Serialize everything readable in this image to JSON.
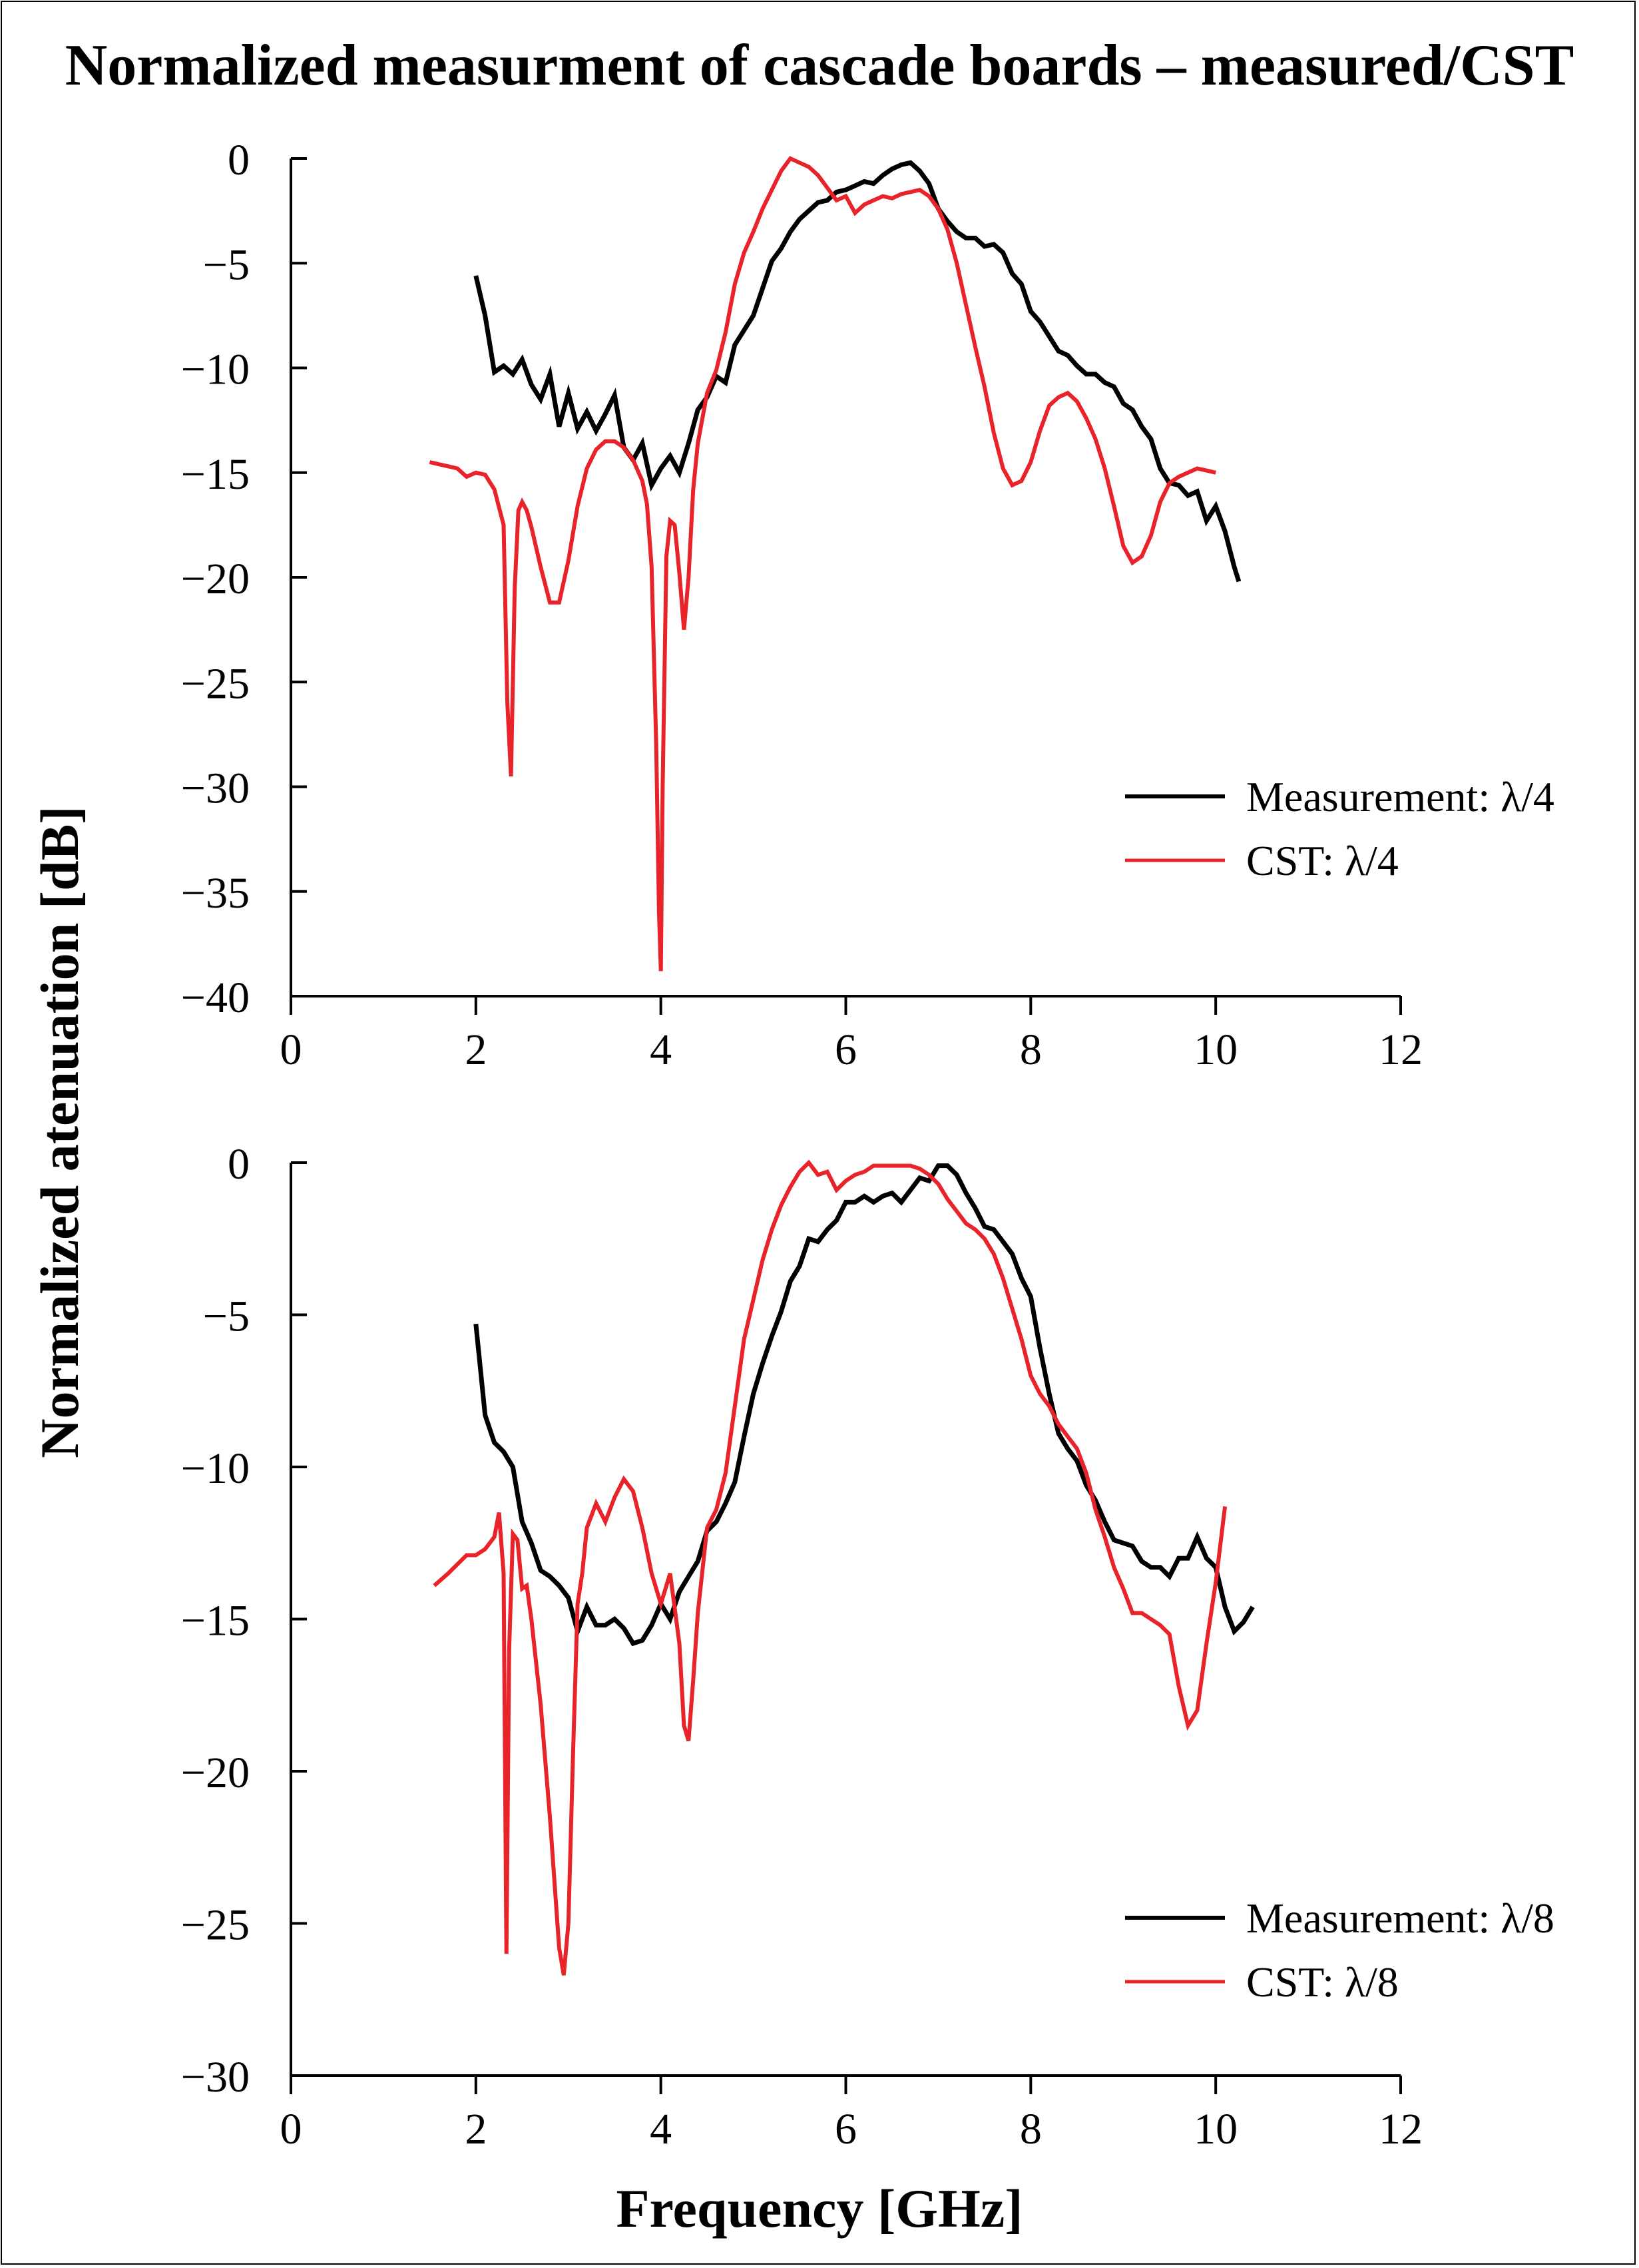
{
  "figure": {
    "title": "Normalized measurment of cascade boards – measured/CST",
    "ylabel": "Normalized atenuation [dB]",
    "xlabel": "Frequency [GHz]"
  },
  "colors": {
    "measurement": "#000000",
    "cst": "#e8232a"
  },
  "chart_data": [
    {
      "type": "line",
      "xlim": [
        0,
        12
      ],
      "ylim": [
        -40,
        0
      ],
      "xticks": [
        0,
        2,
        4,
        6,
        8,
        10,
        12
      ],
      "yticks": [
        0,
        -5,
        -10,
        -15,
        -20,
        -25,
        -30,
        -35,
        -40
      ],
      "xlabel": "Frequency [GHz]",
      "ylabel": "Normalized atenuation [dB]",
      "legend_position": "right",
      "series": [
        {
          "name": "Measurement: λ/4",
          "color": "#000000",
          "x": [
            2.0,
            2.1,
            2.2,
            2.3,
            2.4,
            2.5,
            2.6,
            2.7,
            2.8,
            2.9,
            3.0,
            3.1,
            3.2,
            3.3,
            3.4,
            3.5,
            3.6,
            3.7,
            3.8,
            3.9,
            4.0,
            4.1,
            4.2,
            4.3,
            4.4,
            4.5,
            4.6,
            4.7,
            4.8,
            4.9,
            5.0,
            5.1,
            5.2,
            5.3,
            5.4,
            5.5,
            5.6,
            5.7,
            5.8,
            5.9,
            6.0,
            6.1,
            6.2,
            6.3,
            6.4,
            6.5,
            6.6,
            6.7,
            6.8,
            6.9,
            7.0,
            7.1,
            7.2,
            7.3,
            7.4,
            7.5,
            7.6,
            7.7,
            7.8,
            7.9,
            8.0,
            8.1,
            8.2,
            8.3,
            8.4,
            8.5,
            8.6,
            8.7,
            8.8,
            8.9,
            9.0,
            9.1,
            9.2,
            9.3,
            9.4,
            9.5,
            9.6,
            9.7,
            9.8,
            9.9,
            10.0,
            10.1,
            10.2,
            10.25
          ],
          "y": [
            -5.6,
            -7.5,
            -10.2,
            -9.9,
            -10.3,
            -9.6,
            -10.8,
            -11.5,
            -10.3,
            -12.8,
            -11.2,
            -12.9,
            -12.1,
            -13.0,
            -12.2,
            -11.3,
            -13.8,
            -14.4,
            -13.6,
            -15.6,
            -14.8,
            -14.2,
            -15.0,
            -13.6,
            -12.0,
            -11.4,
            -10.4,
            -10.7,
            -8.9,
            -8.2,
            -7.5,
            -6.2,
            -4.9,
            -4.3,
            -3.5,
            -2.9,
            -2.5,
            -2.1,
            -2.0,
            -1.6,
            -1.5,
            -1.3,
            -1.1,
            -1.2,
            -0.8,
            -0.5,
            -0.3,
            -0.2,
            -0.6,
            -1.2,
            -2.4,
            -3.0,
            -3.5,
            -3.8,
            -3.8,
            -4.2,
            -4.1,
            -4.5,
            -5.5,
            -6.0,
            -7.3,
            -7.8,
            -8.5,
            -9.2,
            -9.4,
            -9.9,
            -10.3,
            -10.3,
            -10.7,
            -10.9,
            -11.7,
            -12.0,
            -12.8,
            -13.4,
            -14.8,
            -15.5,
            -15.6,
            -16.1,
            -15.9,
            -17.3,
            -16.6,
            -17.8,
            -19.5,
            -20.2
          ]
        },
        {
          "name": "CST: λ/4",
          "color": "#e8232a",
          "x": [
            1.5,
            1.6,
            1.7,
            1.8,
            1.9,
            2.0,
            2.1,
            2.2,
            2.3,
            2.34,
            2.38,
            2.42,
            2.46,
            2.5,
            2.55,
            2.6,
            2.7,
            2.8,
            2.9,
            3.0,
            3.1,
            3.2,
            3.3,
            3.4,
            3.5,
            3.6,
            3.7,
            3.8,
            3.85,
            3.9,
            3.95,
            3.98,
            4.0,
            4.02,
            4.06,
            4.1,
            4.15,
            4.2,
            4.25,
            4.3,
            4.35,
            4.4,
            4.5,
            4.6,
            4.7,
            4.8,
            4.9,
            5.0,
            5.1,
            5.2,
            5.3,
            5.4,
            5.5,
            5.6,
            5.7,
            5.8,
            5.9,
            6.0,
            6.1,
            6.2,
            6.3,
            6.4,
            6.5,
            6.6,
            6.7,
            6.8,
            6.9,
            7.0,
            7.1,
            7.2,
            7.3,
            7.4,
            7.5,
            7.6,
            7.7,
            7.8,
            7.9,
            8.0,
            8.1,
            8.2,
            8.3,
            8.4,
            8.5,
            8.6,
            8.7,
            8.8,
            8.9,
            9.0,
            9.1,
            9.2,
            9.3,
            9.4,
            9.5,
            9.6,
            9.7,
            9.8,
            9.9,
            10.0
          ],
          "y": [
            -14.5,
            -14.6,
            -14.7,
            -14.8,
            -15.2,
            -15.0,
            -15.1,
            -15.8,
            -17.5,
            -26.0,
            -29.5,
            -20.5,
            -16.8,
            -16.4,
            -16.8,
            -17.6,
            -19.5,
            -21.2,
            -21.2,
            -19.2,
            -16.6,
            -14.8,
            -13.9,
            -13.5,
            -13.5,
            -13.8,
            -14.4,
            -15.4,
            -16.5,
            -19.5,
            -28.0,
            -36.0,
            -38.8,
            -30.0,
            -19.0,
            -17.3,
            -17.5,
            -19.8,
            -22.5,
            -20.0,
            -15.8,
            -13.6,
            -11.2,
            -10.1,
            -8.3,
            -6.0,
            -4.5,
            -3.5,
            -2.4,
            -1.5,
            -0.6,
            0.0,
            -0.2,
            -0.4,
            -0.8,
            -1.4,
            -2.0,
            -1.8,
            -2.6,
            -2.2,
            -2.0,
            -1.8,
            -1.9,
            -1.7,
            -1.6,
            -1.5,
            -1.8,
            -2.4,
            -3.4,
            -5.0,
            -7.0,
            -9.0,
            -10.9,
            -13.1,
            -14.8,
            -15.6,
            -15.4,
            -14.5,
            -13.0,
            -11.8,
            -11.4,
            -11.2,
            -11.6,
            -12.4,
            -13.4,
            -14.8,
            -16.6,
            -18.5,
            -19.3,
            -19.0,
            -18.0,
            -16.4,
            -15.5,
            -15.2,
            -15.0,
            -14.8,
            -14.9,
            -15.0
          ]
        }
      ]
    },
    {
      "type": "line",
      "xlim": [
        0,
        12
      ],
      "ylim": [
        -30,
        0
      ],
      "xticks": [
        0,
        2,
        4,
        6,
        8,
        10,
        12
      ],
      "yticks": [
        0,
        -5,
        -10,
        -15,
        -20,
        -25,
        -30
      ],
      "xlabel": "Frequency [GHz]",
      "ylabel": "Normalized atenuation [dB]",
      "legend_position": "bottom-right",
      "series": [
        {
          "name": "Measurement: λ/8",
          "color": "#000000",
          "x": [
            2.0,
            2.1,
            2.2,
            2.3,
            2.4,
            2.5,
            2.6,
            2.7,
            2.8,
            2.9,
            3.0,
            3.1,
            3.2,
            3.3,
            3.4,
            3.5,
            3.6,
            3.7,
            3.8,
            3.9,
            4.0,
            4.1,
            4.2,
            4.3,
            4.4,
            4.5,
            4.6,
            4.7,
            4.8,
            4.9,
            5.0,
            5.1,
            5.2,
            5.3,
            5.4,
            5.5,
            5.6,
            5.7,
            5.8,
            5.9,
            6.0,
            6.1,
            6.2,
            6.3,
            6.4,
            6.5,
            6.6,
            6.7,
            6.8,
            6.9,
            7.0,
            7.1,
            7.2,
            7.3,
            7.4,
            7.5,
            7.6,
            7.7,
            7.8,
            7.9,
            8.0,
            8.1,
            8.2,
            8.3,
            8.4,
            8.5,
            8.6,
            8.7,
            8.8,
            8.9,
            9.0,
            9.1,
            9.2,
            9.3,
            9.4,
            9.5,
            9.6,
            9.7,
            9.8,
            9.9,
            10.0,
            10.1,
            10.2,
            10.3,
            10.4
          ],
          "y": [
            -5.3,
            -8.3,
            -9.2,
            -9.5,
            -10.0,
            -11.8,
            -12.5,
            -13.4,
            -13.6,
            -13.9,
            -14.3,
            -15.4,
            -14.6,
            -15.2,
            -15.2,
            -15.0,
            -15.3,
            -15.8,
            -15.7,
            -15.2,
            -14.5,
            -15.0,
            -14.1,
            -13.6,
            -13.1,
            -12.1,
            -11.8,
            -11.2,
            -10.5,
            -9.0,
            -7.6,
            -6.6,
            -5.7,
            -4.9,
            -3.9,
            -3.4,
            -2.5,
            -2.6,
            -2.2,
            -1.9,
            -1.3,
            -1.3,
            -1.1,
            -1.3,
            -1.1,
            -1.0,
            -1.3,
            -0.9,
            -0.5,
            -0.6,
            -0.1,
            -0.1,
            -0.4,
            -1.0,
            -1.5,
            -2.1,
            -2.2,
            -2.6,
            -3.0,
            -3.8,
            -4.4,
            -6.1,
            -7.6,
            -8.9,
            -9.4,
            -9.8,
            -10.6,
            -11.1,
            -11.8,
            -12.4,
            -12.5,
            -12.6,
            -13.1,
            -13.3,
            -13.3,
            -13.6,
            -13.0,
            -13.0,
            -12.3,
            -13.0,
            -13.3,
            -14.6,
            -15.4,
            -15.1,
            -14.6
          ]
        },
        {
          "name": "CST: λ/8",
          "color": "#e8232a",
          "x": [
            1.55,
            1.7,
            1.8,
            1.9,
            2.0,
            2.1,
            2.2,
            2.25,
            2.3,
            2.33,
            2.36,
            2.4,
            2.45,
            2.5,
            2.55,
            2.6,
            2.7,
            2.8,
            2.9,
            2.95,
            3.0,
            3.05,
            3.1,
            3.15,
            3.2,
            3.3,
            3.4,
            3.5,
            3.6,
            3.7,
            3.8,
            3.9,
            4.0,
            4.1,
            4.2,
            4.25,
            4.3,
            4.35,
            4.4,
            4.5,
            4.6,
            4.7,
            4.8,
            4.9,
            5.0,
            5.1,
            5.2,
            5.3,
            5.4,
            5.5,
            5.6,
            5.7,
            5.8,
            5.9,
            6.0,
            6.1,
            6.2,
            6.3,
            6.4,
            6.5,
            6.6,
            6.7,
            6.8,
            6.9,
            7.0,
            7.1,
            7.2,
            7.3,
            7.4,
            7.5,
            7.6,
            7.7,
            7.8,
            7.9,
            8.0,
            8.1,
            8.2,
            8.3,
            8.4,
            8.5,
            8.6,
            8.7,
            8.8,
            8.9,
            9.0,
            9.1,
            9.2,
            9.3,
            9.4,
            9.5,
            9.6,
            9.7,
            9.8,
            9.9,
            10.0,
            10.1
          ],
          "y": [
            -13.9,
            -13.5,
            -13.2,
            -12.9,
            -12.9,
            -12.7,
            -12.3,
            -11.5,
            -13.5,
            -26.0,
            -16.0,
            -12.2,
            -12.4,
            -14.0,
            -13.9,
            -15.0,
            -17.8,
            -21.5,
            -25.8,
            -26.7,
            -25.0,
            -19.5,
            -14.5,
            -13.5,
            -12.0,
            -11.2,
            -11.8,
            -11.0,
            -10.4,
            -10.8,
            -12.0,
            -13.5,
            -14.5,
            -13.5,
            -15.8,
            -18.5,
            -19.0,
            -17.0,
            -14.8,
            -12.0,
            -11.4,
            -10.2,
            -8.0,
            -5.8,
            -4.5,
            -3.2,
            -2.2,
            -1.4,
            -0.8,
            -0.3,
            0.0,
            -0.4,
            -0.3,
            -0.9,
            -0.6,
            -0.4,
            -0.3,
            -0.1,
            -0.1,
            -0.1,
            -0.1,
            -0.1,
            -0.2,
            -0.4,
            -0.7,
            -1.2,
            -1.6,
            -2.0,
            -2.2,
            -2.5,
            -3.0,
            -3.8,
            -4.8,
            -5.8,
            -7.0,
            -7.6,
            -8.0,
            -8.6,
            -9.0,
            -9.4,
            -10.2,
            -11.4,
            -12.3,
            -13.3,
            -14.0,
            -14.8,
            -14.8,
            -15.0,
            -15.2,
            -15.5,
            -17.2,
            -18.5,
            -18.0,
            -15.8,
            -13.8,
            -11.3
          ]
        }
      ]
    }
  ]
}
